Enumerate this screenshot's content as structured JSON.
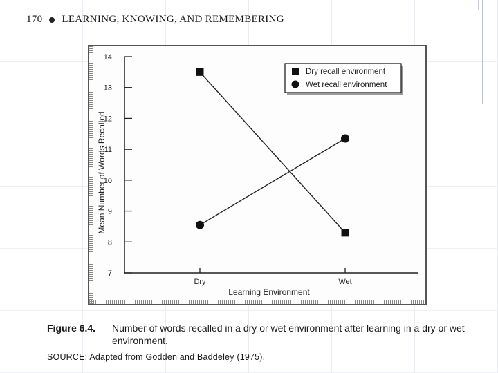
{
  "header": {
    "page_number": "170",
    "title": "LEARNING, KNOWING, AND REMEMBERING"
  },
  "chart_data": {
    "type": "line",
    "categories": [
      "Dry",
      "Wet"
    ],
    "series": [
      {
        "name": "Dry recall environment",
        "marker": "square",
        "values": [
          13.5,
          8.3
        ]
      },
      {
        "name": "Wet recall environment",
        "marker": "circle",
        "values": [
          8.55,
          11.35
        ]
      }
    ],
    "xlabel": "Learning Environment",
    "ylabel": "Mean Number of Words Recalled",
    "ylim": [
      7,
      14
    ],
    "yticks": [
      7,
      8,
      9,
      10,
      11,
      12,
      13,
      14
    ],
    "legend": "top-right",
    "grid": false
  },
  "caption": {
    "label": "Figure 6.4.",
    "text": "Number of words recalled in a dry or wet environment after learning in a dry or wet environment.",
    "source": "SOURCE: Adapted from Godden and Baddeley (1975)."
  }
}
